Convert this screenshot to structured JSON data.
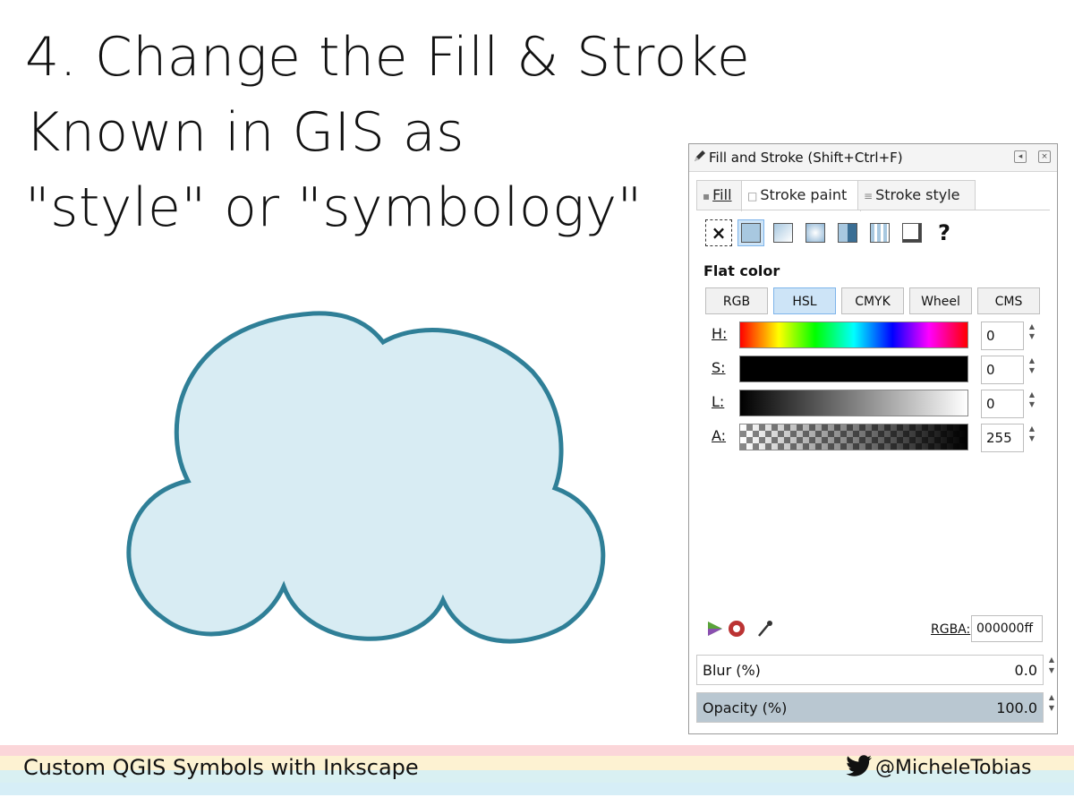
{
  "slide": {
    "title_lines": [
      "4. Change the Fill & Stroke",
      "Known in GIS as",
      "\"style\" or \"symbology\""
    ]
  },
  "cloud": {
    "fill_color": "#d8ecf3",
    "stroke_color": "#2f7f97"
  },
  "dialog": {
    "title": "Fill and Stroke (Shift+Ctrl+F)",
    "tabs": [
      {
        "label": "Fill",
        "active": false
      },
      {
        "label": "Stroke paint",
        "active": true
      },
      {
        "label": "Stroke style",
        "active": false
      }
    ],
    "paint_types": [
      "none-icon",
      "flat-color-icon",
      "linear-gradient-icon",
      "radial-gradient-icon",
      "mesh-icon",
      "pattern-icon",
      "swatch-icon",
      "unset-icon"
    ],
    "paint_unset": "?",
    "paint_none": "×",
    "section_label": "Flat color",
    "modes": [
      {
        "label": "RGB",
        "active": false
      },
      {
        "label": "HSL",
        "active": true
      },
      {
        "label": "CMYK",
        "active": false
      },
      {
        "label": "Wheel",
        "active": false
      },
      {
        "label": "CMS",
        "active": false
      }
    ],
    "sliders": [
      {
        "label": "H:",
        "value": "0"
      },
      {
        "label": "S:",
        "value": "0"
      },
      {
        "label": "L:",
        "value": "0"
      },
      {
        "label": "A:",
        "value": "255"
      }
    ],
    "rgba_label": "RGBA:",
    "rgba_value": "000000ff",
    "blur": {
      "label": "Blur (%)",
      "value": "0.0"
    },
    "opacity": {
      "label": "Opacity (%)",
      "value": "100.0"
    }
  },
  "footer": {
    "left": "Custom QGIS Symbols with Inkscape",
    "right": "@MicheleTobias",
    "stripe_colors": [
      "#fbd6d9",
      "#fdf2d2",
      "#d9f0f2",
      "#d6eef7"
    ]
  }
}
